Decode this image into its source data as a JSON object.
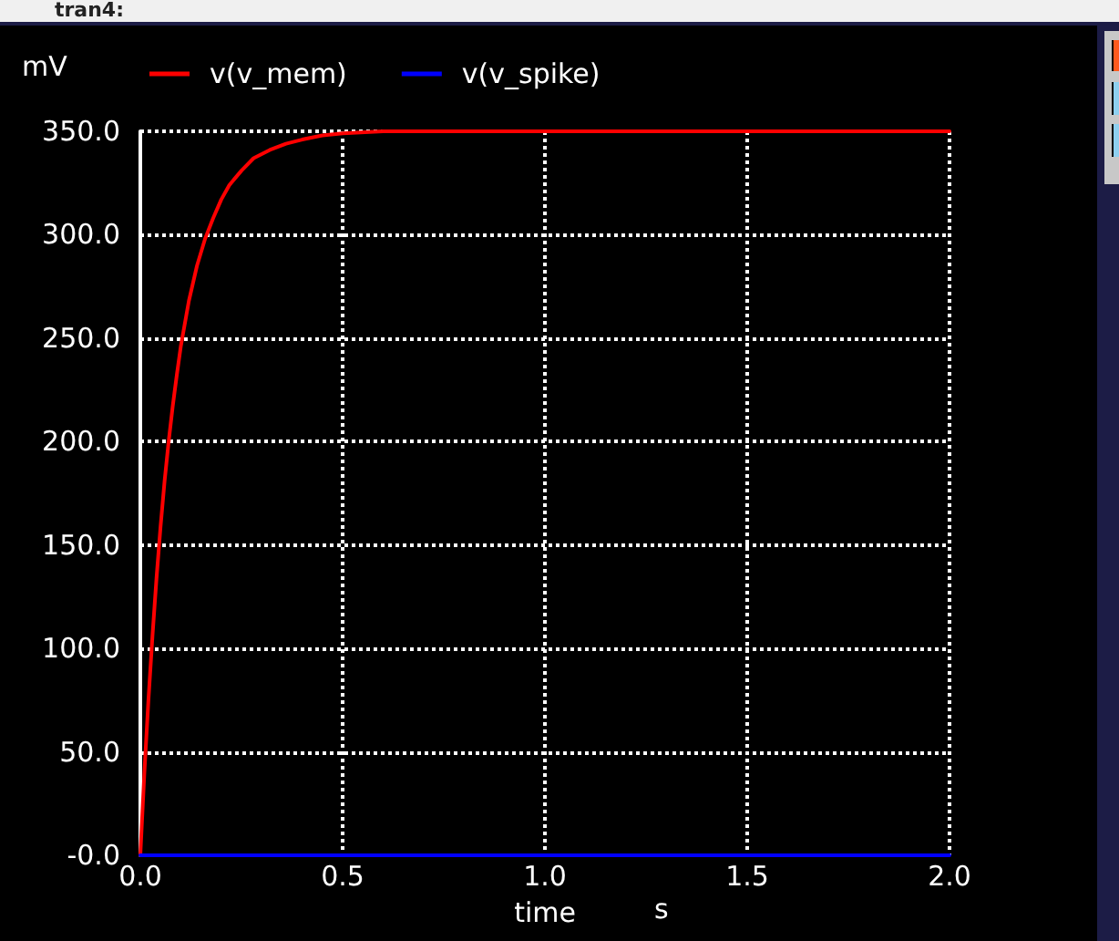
{
  "chart_data": {
    "type": "line",
    "title": "tran4:",
    "xlabel": "time",
    "ylabel": "mV",
    "annotations": [
      "s"
    ],
    "xlim": [
      0,
      2.0
    ],
    "ylim": [
      0,
      350
    ],
    "xticks": [
      {
        "value": 0,
        "label": "0.0"
      },
      {
        "value": 0.5,
        "label": "0.5"
      },
      {
        "value": 1.0,
        "label": "1.0"
      },
      {
        "value": 1.5,
        "label": "1.5"
      },
      {
        "value": 2.0,
        "label": "2.0"
      }
    ],
    "yticks": [
      {
        "value": 0,
        "label": "-0.0"
      },
      {
        "value": 50,
        "label": "50.0"
      },
      {
        "value": 100,
        "label": "100.0"
      },
      {
        "value": 150,
        "label": "150.0"
      },
      {
        "value": 200,
        "label": "200.0"
      },
      {
        "value": 250,
        "label": "250.0"
      },
      {
        "value": 300,
        "label": "300.0"
      },
      {
        "value": 350,
        "label": "350.0"
      }
    ],
    "series": [
      {
        "name": "v(v_mem)",
        "color": "#ff0000",
        "x": [
          0,
          0.01,
          0.02,
          0.03,
          0.04,
          0.05,
          0.06,
          0.07,
          0.08,
          0.09,
          0.1,
          0.12,
          0.14,
          0.16,
          0.18,
          0.2,
          0.22,
          0.25,
          0.28,
          0.32,
          0.36,
          0.4,
          0.45,
          0.5,
          0.6,
          1.0,
          2.0
        ],
        "values": [
          0,
          40,
          75,
          106,
          134,
          159,
          181,
          200,
          217,
          232,
          246,
          268,
          285,
          298,
          308,
          317,
          324,
          331,
          337,
          341,
          344,
          346,
          348,
          349,
          350,
          350,
          350
        ]
      },
      {
        "name": "v(v_spike)",
        "color": "#0000ff",
        "x": [
          0,
          2.0
        ],
        "values": [
          0,
          0
        ]
      }
    ],
    "grid": true,
    "legend": "top left",
    "marker": "none"
  }
}
